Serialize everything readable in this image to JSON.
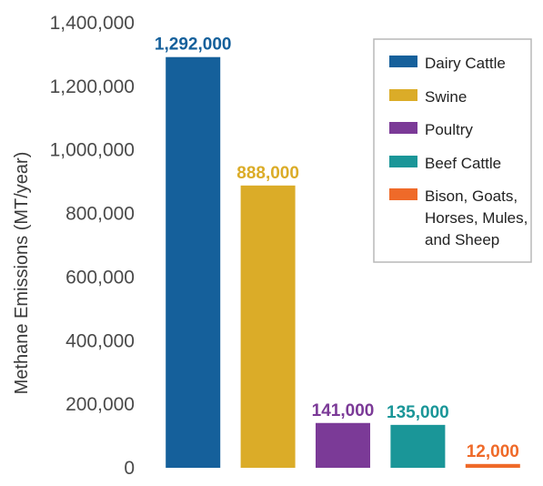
{
  "chart_data": {
    "type": "bar",
    "categories": [
      "Dairy Cattle",
      "Swine",
      "Poultry",
      "Beef Cattle",
      "Bison, Goats, Horses, Mules, and Sheep"
    ],
    "values": [
      1292000,
      888000,
      141000,
      135000,
      12000
    ],
    "value_labels": [
      "1,292,000",
      "888,000",
      "141,000",
      "135,000",
      "12,000"
    ],
    "colors": [
      "#15609b",
      "#dbac28",
      "#7b3a97",
      "#1a9698",
      "#ef6a29"
    ],
    "ylabel": "Methane Emissions (MT/year)",
    "ylim": [
      0,
      1400000
    ],
    "yticks": [
      0,
      200000,
      400000,
      600000,
      800000,
      1000000,
      1200000,
      1400000
    ],
    "ytick_labels": [
      "0",
      "200,000",
      "400,000",
      "600,000",
      "800,000",
      "1,000,000",
      "1,200,000",
      "1,400,000"
    ],
    "legend": {
      "position": "top-right",
      "entries": [
        {
          "lines": [
            "Dairy Cattle"
          ],
          "color": "#15609b"
        },
        {
          "lines": [
            "Swine"
          ],
          "color": "#dbac28"
        },
        {
          "lines": [
            "Poultry"
          ],
          "color": "#7b3a97"
        },
        {
          "lines": [
            "Beef Cattle"
          ],
          "color": "#1a9698"
        },
        {
          "lines": [
            "Bison, Goats,",
            "Horses, Mules,",
            "and Sheep"
          ],
          "color": "#ef6a29"
        }
      ]
    },
    "grid": false
  }
}
